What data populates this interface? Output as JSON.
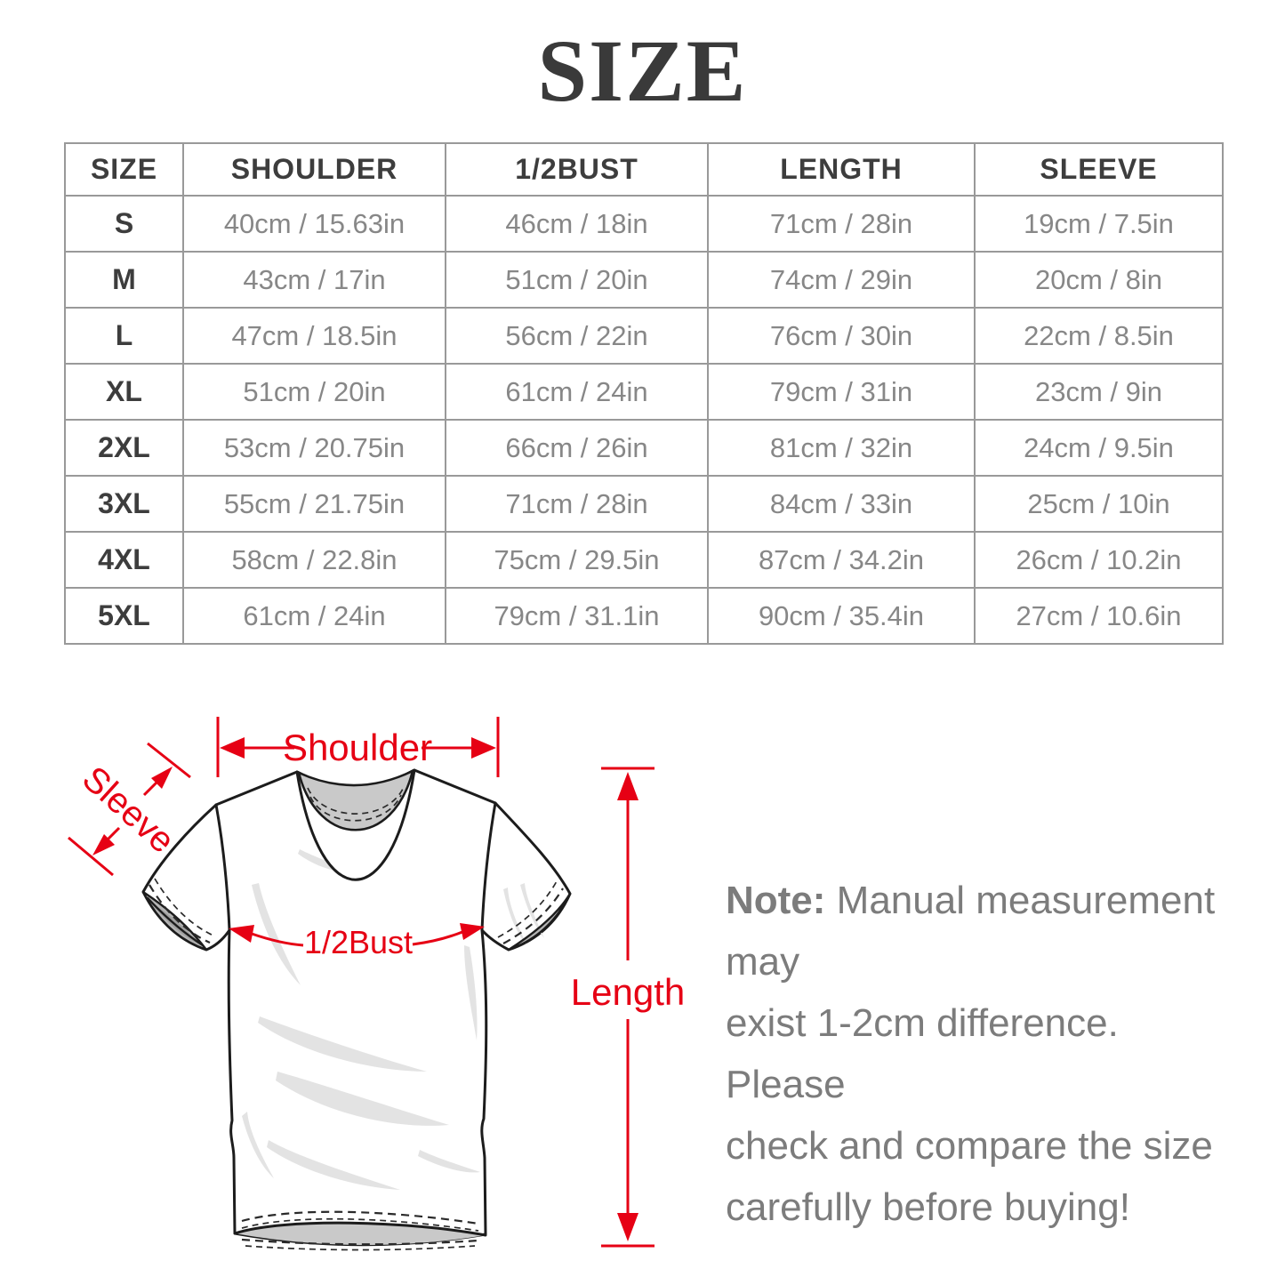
{
  "title": "SIZE",
  "table": {
    "columns": [
      "SIZE",
      "SHOULDER",
      "1/2BUST",
      "LENGTH",
      "SLEEVE"
    ],
    "rows": [
      [
        "S",
        "40cm / 15.63in",
        "46cm / 18in",
        "71cm / 28in",
        "19cm / 7.5in"
      ],
      [
        "M",
        "43cm / 17in",
        "51cm / 20in",
        "74cm / 29in",
        "20cm / 8in"
      ],
      [
        "L",
        "47cm / 18.5in",
        "56cm / 22in",
        "76cm / 30in",
        "22cm / 8.5in"
      ],
      [
        "XL",
        "51cm / 20in",
        "61cm / 24in",
        "79cm / 31in",
        "23cm / 9in"
      ],
      [
        "2XL",
        "53cm / 20.75in",
        "66cm / 26in",
        "81cm / 32in",
        "24cm / 9.5in"
      ],
      [
        "3XL",
        "55cm / 21.75in",
        "71cm / 28in",
        "84cm / 33in",
        "25cm / 10in"
      ],
      [
        "4XL",
        "58cm / 22.8in",
        "75cm / 29.5in",
        "87cm / 34.2in",
        "26cm / 10.2in"
      ],
      [
        "5XL",
        "61cm / 24in",
        "79cm / 31.1in",
        "90cm / 35.4in",
        "27cm / 10.6in"
      ]
    ]
  },
  "diagram": {
    "labels": {
      "shoulder": "Shoulder",
      "sleeve": "Sleeve",
      "bust": "1/2Bust",
      "length": "Length"
    }
  },
  "note": {
    "prefix": "Note:",
    "lines": [
      "Manual measurement may",
      "exist 1-2cm difference. Please",
      "check and compare the size",
      "carefully before buying!"
    ]
  },
  "colors": {
    "annotation_red": "#e60014",
    "grid": "#999999",
    "header_text": "#3d3d3d",
    "value_text": "#878787",
    "note_text": "#7c7c7c",
    "title_text": "#3a3a3a"
  }
}
